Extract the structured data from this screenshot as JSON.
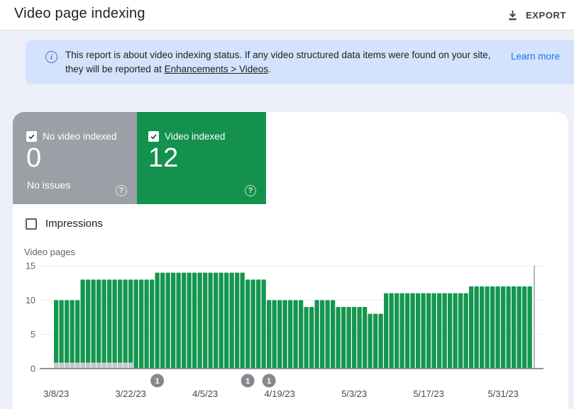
{
  "header": {
    "title": "Video page indexing",
    "export_label": "EXPORT"
  },
  "banner": {
    "message_before_link": "This report is about video indexing status. If any video structured data items were found on your site, they will be reported at ",
    "link_text": "Enhancements > Videos",
    "message_after_link": ".",
    "learn_more_label": "Learn more"
  },
  "cards": {
    "no_video_indexed": {
      "label": "No video indexed",
      "value": "0",
      "subtitle": "No issues",
      "checked": true,
      "color": "#9aa0a6",
      "help_icon_glyph": "?"
    },
    "video_indexed": {
      "label": "Video indexed",
      "value": "12",
      "checked": true,
      "color": "#14914d",
      "help_icon_glyph": "?"
    }
  },
  "impressions_toggle": {
    "label": "Impressions",
    "checked": false
  },
  "chart_data": {
    "type": "bar",
    "title": "Video pages",
    "ylabel": "Video pages",
    "xlabel": "",
    "ylim": [
      0,
      15
    ],
    "y_ticks": [
      0,
      5,
      10,
      15
    ],
    "grid": true,
    "legend": "none",
    "x_unit": "day",
    "start_date": "3/8/23",
    "x_tick_labels": [
      "3/8/23",
      "3/22/23",
      "4/5/23",
      "4/19/23",
      "5/3/23",
      "5/17/23",
      "5/31/23"
    ],
    "x_tick_day_indices": [
      0,
      14,
      28,
      42,
      56,
      70,
      84
    ],
    "series": [
      {
        "name": "Video indexed",
        "color": "#15964f",
        "values": [
          10,
          10,
          10,
          10,
          10,
          13,
          13,
          13,
          13,
          13,
          13,
          13,
          13,
          13,
          13,
          13,
          13,
          13,
          13,
          14,
          14,
          14,
          14,
          14,
          14,
          14,
          14,
          14,
          14,
          14,
          14,
          14,
          14,
          14,
          14,
          14,
          13,
          13,
          13,
          13,
          10,
          10,
          10,
          10,
          10,
          10,
          10,
          9,
          9,
          10,
          10,
          10,
          10,
          9,
          9,
          9,
          9,
          9,
          9,
          8,
          8,
          8,
          11,
          11,
          11,
          11,
          11,
          11,
          11,
          11,
          11,
          11,
          11,
          11,
          11,
          11,
          11,
          11,
          12,
          12,
          12,
          12,
          12,
          12,
          12,
          12,
          12,
          12,
          12,
          12
        ]
      },
      {
        "name": "No video indexed",
        "color": "#c6c8ca",
        "values": [
          1,
          1,
          1,
          1,
          1,
          1,
          1,
          1,
          1,
          1,
          1,
          1,
          1,
          1,
          1,
          0,
          0,
          0,
          0,
          0,
          0,
          0,
          0,
          0,
          0,
          0,
          0,
          0,
          0,
          0,
          0,
          0,
          0,
          0,
          0,
          0,
          0,
          0,
          0,
          0,
          0,
          0,
          0,
          0,
          0,
          0,
          0,
          0,
          0,
          0,
          0,
          0,
          0,
          0,
          0,
          0,
          0,
          0,
          0,
          0,
          0,
          0,
          0,
          0,
          0,
          0,
          0,
          0,
          0,
          0,
          0,
          0,
          0,
          0,
          0,
          0,
          0,
          0,
          0,
          0,
          0,
          0,
          0,
          0,
          0,
          0,
          0,
          0,
          0,
          0
        ]
      }
    ],
    "markers": [
      {
        "day_index": 19,
        "label": "1"
      },
      {
        "day_index": 36,
        "label": "1"
      },
      {
        "day_index": 40,
        "label": "1"
      }
    ]
  },
  "colors": {
    "page_background": "#edf0f8",
    "banner_background": "#d3e3fd",
    "link_blue": "#1a73e8",
    "gridline": "#e9ebef",
    "baseline": "#8f9499",
    "marker": "#85898d"
  }
}
